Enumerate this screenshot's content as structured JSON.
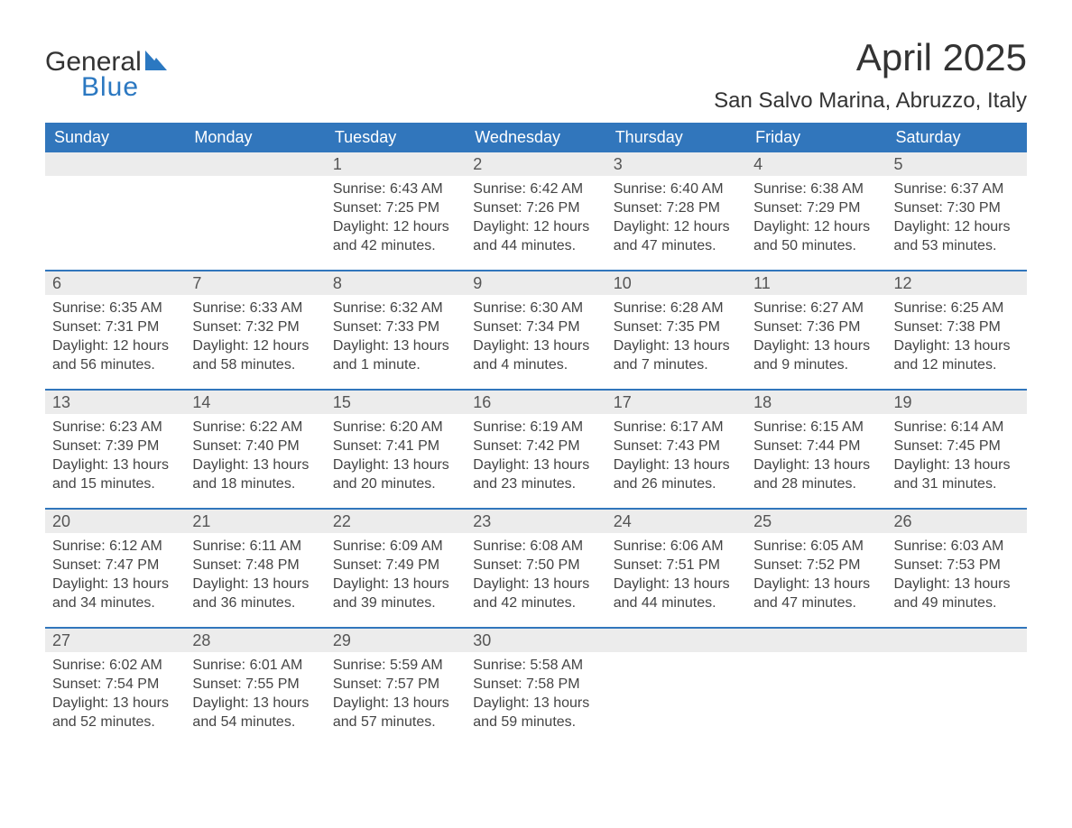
{
  "logo": {
    "text1": "General",
    "text2": "Blue",
    "text_color": "#333333",
    "accent_color": "#2b78c1"
  },
  "title": "April 2025",
  "subtitle": "San Salvo Marina, Abruzzo, Italy",
  "colors": {
    "header_bg": "#3176bc",
    "header_text": "#ffffff",
    "daynum_bg": "#ececec",
    "daynum_text": "#555555",
    "body_text": "#444444",
    "week_border": "#3176bc",
    "page_bg": "#ffffff"
  },
  "fonts": {
    "title_size_pt": 32,
    "subtitle_size_pt": 18,
    "dow_size_pt": 14,
    "daynum_size_pt": 14,
    "body_size_pt": 12,
    "family": "Arial"
  },
  "calendar": {
    "type": "table",
    "days_of_week": [
      "Sunday",
      "Monday",
      "Tuesday",
      "Wednesday",
      "Thursday",
      "Friday",
      "Saturday"
    ],
    "weeks": [
      [
        null,
        null,
        {
          "day": "1",
          "sunrise": "Sunrise: 6:43 AM",
          "sunset": "Sunset: 7:25 PM",
          "daylight": "Daylight: 12 hours and 42 minutes."
        },
        {
          "day": "2",
          "sunrise": "Sunrise: 6:42 AM",
          "sunset": "Sunset: 7:26 PM",
          "daylight": "Daylight: 12 hours and 44 minutes."
        },
        {
          "day": "3",
          "sunrise": "Sunrise: 6:40 AM",
          "sunset": "Sunset: 7:28 PM",
          "daylight": "Daylight: 12 hours and 47 minutes."
        },
        {
          "day": "4",
          "sunrise": "Sunrise: 6:38 AM",
          "sunset": "Sunset: 7:29 PM",
          "daylight": "Daylight: 12 hours and 50 minutes."
        },
        {
          "day": "5",
          "sunrise": "Sunrise: 6:37 AM",
          "sunset": "Sunset: 7:30 PM",
          "daylight": "Daylight: 12 hours and 53 minutes."
        }
      ],
      [
        {
          "day": "6",
          "sunrise": "Sunrise: 6:35 AM",
          "sunset": "Sunset: 7:31 PM",
          "daylight": "Daylight: 12 hours and 56 minutes."
        },
        {
          "day": "7",
          "sunrise": "Sunrise: 6:33 AM",
          "sunset": "Sunset: 7:32 PM",
          "daylight": "Daylight: 12 hours and 58 minutes."
        },
        {
          "day": "8",
          "sunrise": "Sunrise: 6:32 AM",
          "sunset": "Sunset: 7:33 PM",
          "daylight": "Daylight: 13 hours and 1 minute."
        },
        {
          "day": "9",
          "sunrise": "Sunrise: 6:30 AM",
          "sunset": "Sunset: 7:34 PM",
          "daylight": "Daylight: 13 hours and 4 minutes."
        },
        {
          "day": "10",
          "sunrise": "Sunrise: 6:28 AM",
          "sunset": "Sunset: 7:35 PM",
          "daylight": "Daylight: 13 hours and 7 minutes."
        },
        {
          "day": "11",
          "sunrise": "Sunrise: 6:27 AM",
          "sunset": "Sunset: 7:36 PM",
          "daylight": "Daylight: 13 hours and 9 minutes."
        },
        {
          "day": "12",
          "sunrise": "Sunrise: 6:25 AM",
          "sunset": "Sunset: 7:38 PM",
          "daylight": "Daylight: 13 hours and 12 minutes."
        }
      ],
      [
        {
          "day": "13",
          "sunrise": "Sunrise: 6:23 AM",
          "sunset": "Sunset: 7:39 PM",
          "daylight": "Daylight: 13 hours and 15 minutes."
        },
        {
          "day": "14",
          "sunrise": "Sunrise: 6:22 AM",
          "sunset": "Sunset: 7:40 PM",
          "daylight": "Daylight: 13 hours and 18 minutes."
        },
        {
          "day": "15",
          "sunrise": "Sunrise: 6:20 AM",
          "sunset": "Sunset: 7:41 PM",
          "daylight": "Daylight: 13 hours and 20 minutes."
        },
        {
          "day": "16",
          "sunrise": "Sunrise: 6:19 AM",
          "sunset": "Sunset: 7:42 PM",
          "daylight": "Daylight: 13 hours and 23 minutes."
        },
        {
          "day": "17",
          "sunrise": "Sunrise: 6:17 AM",
          "sunset": "Sunset: 7:43 PM",
          "daylight": "Daylight: 13 hours and 26 minutes."
        },
        {
          "day": "18",
          "sunrise": "Sunrise: 6:15 AM",
          "sunset": "Sunset: 7:44 PM",
          "daylight": "Daylight: 13 hours and 28 minutes."
        },
        {
          "day": "19",
          "sunrise": "Sunrise: 6:14 AM",
          "sunset": "Sunset: 7:45 PM",
          "daylight": "Daylight: 13 hours and 31 minutes."
        }
      ],
      [
        {
          "day": "20",
          "sunrise": "Sunrise: 6:12 AM",
          "sunset": "Sunset: 7:47 PM",
          "daylight": "Daylight: 13 hours and 34 minutes."
        },
        {
          "day": "21",
          "sunrise": "Sunrise: 6:11 AM",
          "sunset": "Sunset: 7:48 PM",
          "daylight": "Daylight: 13 hours and 36 minutes."
        },
        {
          "day": "22",
          "sunrise": "Sunrise: 6:09 AM",
          "sunset": "Sunset: 7:49 PM",
          "daylight": "Daylight: 13 hours and 39 minutes."
        },
        {
          "day": "23",
          "sunrise": "Sunrise: 6:08 AM",
          "sunset": "Sunset: 7:50 PM",
          "daylight": "Daylight: 13 hours and 42 minutes."
        },
        {
          "day": "24",
          "sunrise": "Sunrise: 6:06 AM",
          "sunset": "Sunset: 7:51 PM",
          "daylight": "Daylight: 13 hours and 44 minutes."
        },
        {
          "day": "25",
          "sunrise": "Sunrise: 6:05 AM",
          "sunset": "Sunset: 7:52 PM",
          "daylight": "Daylight: 13 hours and 47 minutes."
        },
        {
          "day": "26",
          "sunrise": "Sunrise: 6:03 AM",
          "sunset": "Sunset: 7:53 PM",
          "daylight": "Daylight: 13 hours and 49 minutes."
        }
      ],
      [
        {
          "day": "27",
          "sunrise": "Sunrise: 6:02 AM",
          "sunset": "Sunset: 7:54 PM",
          "daylight": "Daylight: 13 hours and 52 minutes."
        },
        {
          "day": "28",
          "sunrise": "Sunrise: 6:01 AM",
          "sunset": "Sunset: 7:55 PM",
          "daylight": "Daylight: 13 hours and 54 minutes."
        },
        {
          "day": "29",
          "sunrise": "Sunrise: 5:59 AM",
          "sunset": "Sunset: 7:57 PM",
          "daylight": "Daylight: 13 hours and 57 minutes."
        },
        {
          "day": "30",
          "sunrise": "Sunrise: 5:58 AM",
          "sunset": "Sunset: 7:58 PM",
          "daylight": "Daylight: 13 hours and 59 minutes."
        },
        null,
        null,
        null
      ]
    ]
  }
}
